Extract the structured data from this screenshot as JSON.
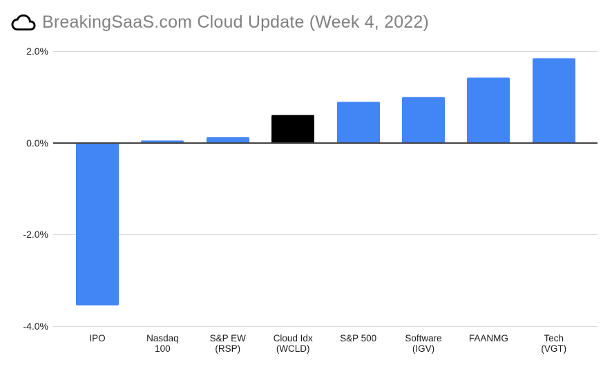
{
  "title": {
    "text": "BreakingSaaS.com Cloud Update (Week 4, 2022)",
    "icon": "cloud-icon"
  },
  "colors": {
    "bar_default": "#4285f4",
    "bar_highlight": "#000000",
    "gridline": "#d9d9d9",
    "baseline": "#424242",
    "axis_text": "#1f1f1f",
    "title_text": "#808080",
    "background": "#ffffff"
  },
  "chart_data": {
    "type": "bar",
    "title": "BreakingSaaS.com Cloud Update (Week 4, 2022)",
    "categories": [
      "IPO",
      "Nasdaq 100",
      "S&P EW (RSP)",
      "Cloud Idx (WCLD)",
      "S&P 500",
      "Software (IGV)",
      "FAANMG",
      "Tech (VGT)"
    ],
    "category_label_lines": [
      [
        "IPO"
      ],
      [
        "Nasdaq",
        "100"
      ],
      [
        "S&P EW",
        "(RSP)"
      ],
      [
        "Cloud Idx",
        "(WCLD)"
      ],
      [
        "S&P 500"
      ],
      [
        "Software",
        "(IGV)"
      ],
      [
        "FAANMG"
      ],
      [
        "Tech",
        "(VGT)"
      ]
    ],
    "values": [
      -3.55,
      0.05,
      0.13,
      0.62,
      0.9,
      1.0,
      1.43,
      1.85
    ],
    "bar_colors": [
      "#4285f4",
      "#4285f4",
      "#4285f4",
      "#000000",
      "#4285f4",
      "#4285f4",
      "#4285f4",
      "#4285f4"
    ],
    "highlight": {
      "index": 3,
      "category": "Cloud Idx (WCLD)",
      "color": "#000000"
    },
    "xlabel": "",
    "ylabel": "",
    "ylim": [
      -4,
      2
    ],
    "grid": true,
    "legend": "none",
    "y_axis": {
      "ticks": [
        {
          "label": "2.0%",
          "value": 2
        },
        {
          "label": "0.0%",
          "value": 0
        },
        {
          "label": "-2.0%",
          "value": -2
        },
        {
          "label": "-4.0%",
          "value": -4
        }
      ]
    }
  }
}
